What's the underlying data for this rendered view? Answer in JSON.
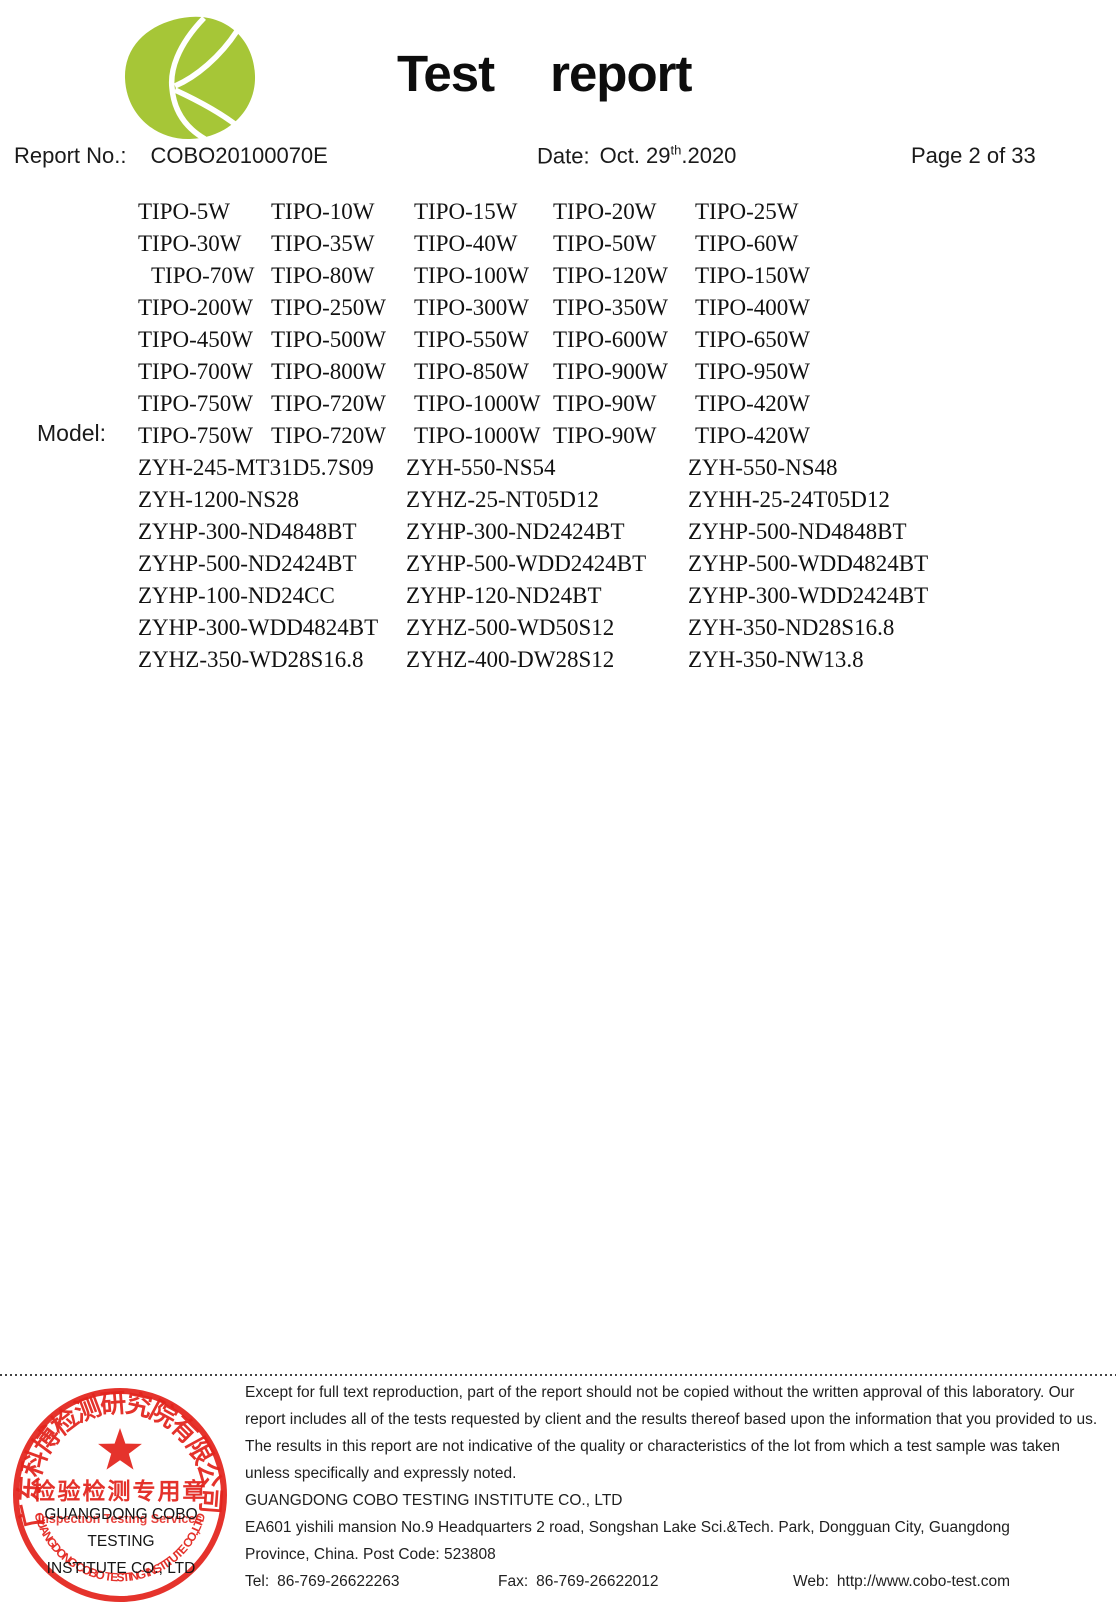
{
  "header": {
    "logo_name": "cobo-leaf-logo",
    "title_words": [
      "Test",
      "report"
    ],
    "report_no_label": "Report No.:",
    "report_no_value": "COBO20100070E",
    "date_label": "Date:",
    "date_value_prefix": "Oct. 29",
    "date_value_sup": "th",
    "date_value_suffix": ".2020",
    "page_label": "Page 2 of 33"
  },
  "model": {
    "label": "Model:",
    "tipo_rows": [
      [
        "TIPO-5W",
        "TIPO-10W",
        "TIPO-15W",
        "TIPO-20W",
        "TIPO-25W"
      ],
      [
        "TIPO-30W",
        "TIPO-35W",
        "TIPO-40W",
        "TIPO-50W",
        "TIPO-60W"
      ],
      [
        "TIPO-70W",
        "TIPO-80W",
        "TIPO-100W",
        "TIPO-120W",
        "TIPO-150W"
      ],
      [
        "TIPO-200W",
        "TIPO-250W",
        "TIPO-300W",
        "TIPO-350W",
        "TIPO-400W"
      ],
      [
        "TIPO-450W",
        "TIPO-500W",
        "TIPO-550W",
        "TIPO-600W",
        "TIPO-650W"
      ],
      [
        "TIPO-700W",
        "TIPO-800W",
        "TIPO-850W",
        "TIPO-900W",
        "TIPO-950W"
      ],
      [
        "TIPO-750W",
        "TIPO-720W",
        "TIPO-1000W",
        "TIPO-90W",
        "TIPO-420W"
      ],
      [
        "TIPO-750W",
        "TIPO-720W",
        "TIPO-1000W",
        "TIPO-90W",
        "TIPO-420W"
      ]
    ],
    "zyh_rows": [
      [
        "ZYH-245-MT31D5.7S09",
        "ZYH-550-NS54",
        "ZYH-550-NS48"
      ],
      [
        "ZYH-1200-NS28",
        "ZYHZ-25-NT05D12",
        "ZYHH-25-24T05D12"
      ],
      [
        "ZYHP-300-ND4848BT",
        "ZYHP-300-ND2424BT",
        "ZYHP-500-ND4848BT"
      ],
      [
        "ZYHP-500-ND2424BT",
        "ZYHP-500-WDD2424BT",
        "ZYHP-500-WDD4824BT"
      ],
      [
        "ZYHP-100-ND24CC",
        "ZYHP-120-ND24BT",
        "ZYHP-300-WDD2424BT"
      ],
      [
        "ZYHP-300-WDD4824BT",
        "ZYHZ-500-WD50S12",
        "ZYH-350-ND28S16.8"
      ],
      [
        "ZYHZ-350-WD28S16.8",
        "ZYHZ-400-DW28S12",
        "ZYH-350-NW13.8"
      ]
    ]
  },
  "footer": {
    "disclaimer_lines": [
      "Except for full text reproduction, part of the report should not be copied without the written approval of this laboratory. Our",
      "report includes all of the tests requested by client and the results thereof based upon the information that you provided to us.",
      "The results in this report are not indicative of the quality or characteristics of the lot from which a test sample was taken",
      "unless specifically and expressly noted."
    ],
    "company": "GUANGDONG COBO TESTING INSTITUTE CO., LTD",
    "address_line1": "EA601 yishili mansion No.9 Headquarters 2 road, Songshan Lake Sci.&Tech. Park, Dongguan City, Guangdong",
    "address_line2": "Province, China. Post Code: 523808",
    "tel_label": "Tel:",
    "tel_value": "86-769-26622263",
    "fax_label": "Fax:",
    "fax_value": "86-769-26622012",
    "web_label": "Web:",
    "web_value": "http://www.cobo-test.com"
  },
  "stamp": {
    "top_arc_text": "广东科博检测研究院有限公司",
    "center_text": "检验检测专用章",
    "sub_text": "Inspection Testing Services",
    "bottom_arc_text": "GUANGDONG COBO TESTING INSTITUTE CO.,LTD",
    "overlay_line1": "GUANGDONG COBO TESTING",
    "overlay_line2": "INSTITUTE CO., LTD"
  },
  "colors": {
    "logo_green": "#a6c637",
    "stamp_red": "#e3231c",
    "text": "#1c1c1c"
  }
}
